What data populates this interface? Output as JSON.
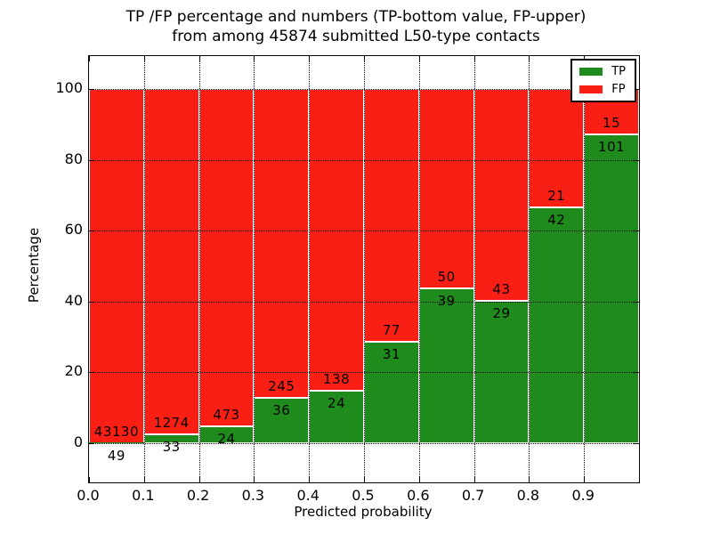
{
  "chart_data": {
    "type": "bar",
    "stacked": true,
    "title_line1": "TP /FP percentage and numbers (TP-bottom value, FP-upper)",
    "title_line2": "from among 45874 submitted L50-type contacts",
    "xlabel": "Predicted probability",
    "ylabel": "Percentage",
    "x_tick_labels": [
      "0.0",
      "0.1",
      "0.2",
      "0.3",
      "0.4",
      "0.5",
      "0.6",
      "0.7",
      "0.8",
      "0.9"
    ],
    "y_tick_values": [
      0,
      20,
      40,
      60,
      80,
      100
    ],
    "y_tick_labels": [
      "0",
      "20",
      "40",
      "60",
      "80",
      "100"
    ],
    "xlim": [
      0.0,
      1.0
    ],
    "ylim": [
      -11,
      110
    ],
    "grid": "dotted",
    "colors": {
      "tp": "#1f8b1c",
      "fp": "#fa1f14",
      "bar_edge": "#ffffff",
      "frame": "#000000"
    },
    "legend": {
      "position": "upper-right",
      "entries": [
        {
          "label": "TP",
          "color": "#1f8b1c"
        },
        {
          "label": "FP",
          "color": "#fa1f14"
        }
      ]
    },
    "bars": [
      {
        "bin_start": 0.0,
        "bin_end": 0.1,
        "tp": 49,
        "fp": 43130
      },
      {
        "bin_start": 0.1,
        "bin_end": 0.2,
        "tp": 33,
        "fp": 1274
      },
      {
        "bin_start": 0.2,
        "bin_end": 0.3,
        "tp": 24,
        "fp": 473
      },
      {
        "bin_start": 0.3,
        "bin_end": 0.4,
        "tp": 36,
        "fp": 245
      },
      {
        "bin_start": 0.4,
        "bin_end": 0.5,
        "tp": 24,
        "fp": 138
      },
      {
        "bin_start": 0.5,
        "bin_end": 0.6,
        "tp": 31,
        "fp": 77
      },
      {
        "bin_start": 0.6,
        "bin_end": 0.7,
        "tp": 39,
        "fp": 50
      },
      {
        "bin_start": 0.7,
        "bin_end": 0.8,
        "tp": 29,
        "fp": 43
      },
      {
        "bin_start": 0.8,
        "bin_end": 0.9,
        "tp": 42,
        "fp": 21
      },
      {
        "bin_start": 0.9,
        "bin_end": 1.0,
        "tp": 101,
        "fp": 15
      }
    ]
  }
}
